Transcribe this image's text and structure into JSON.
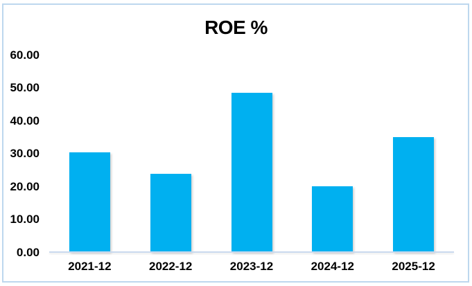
{
  "chart_data": {
    "type": "bar",
    "title": "ROE %",
    "categories": [
      "2021-12",
      "2022-12",
      "2023-12",
      "2024-12",
      "2025-12"
    ],
    "values": [
      30.4,
      23.8,
      48.4,
      20.1,
      35.0
    ],
    "y_ticks": [
      "60.00",
      "50.00",
      "40.00",
      "30.00",
      "20.00",
      "10.00",
      "0.00"
    ],
    "ylim": [
      0,
      60
    ],
    "xlabel": "",
    "ylabel": "",
    "grid": "off",
    "legend": "none",
    "bar_color": "#00B0F0",
    "axis_line_color": "#c9d9ee",
    "frame_border_color": "#bdd7ee",
    "text_color": "#000000"
  }
}
